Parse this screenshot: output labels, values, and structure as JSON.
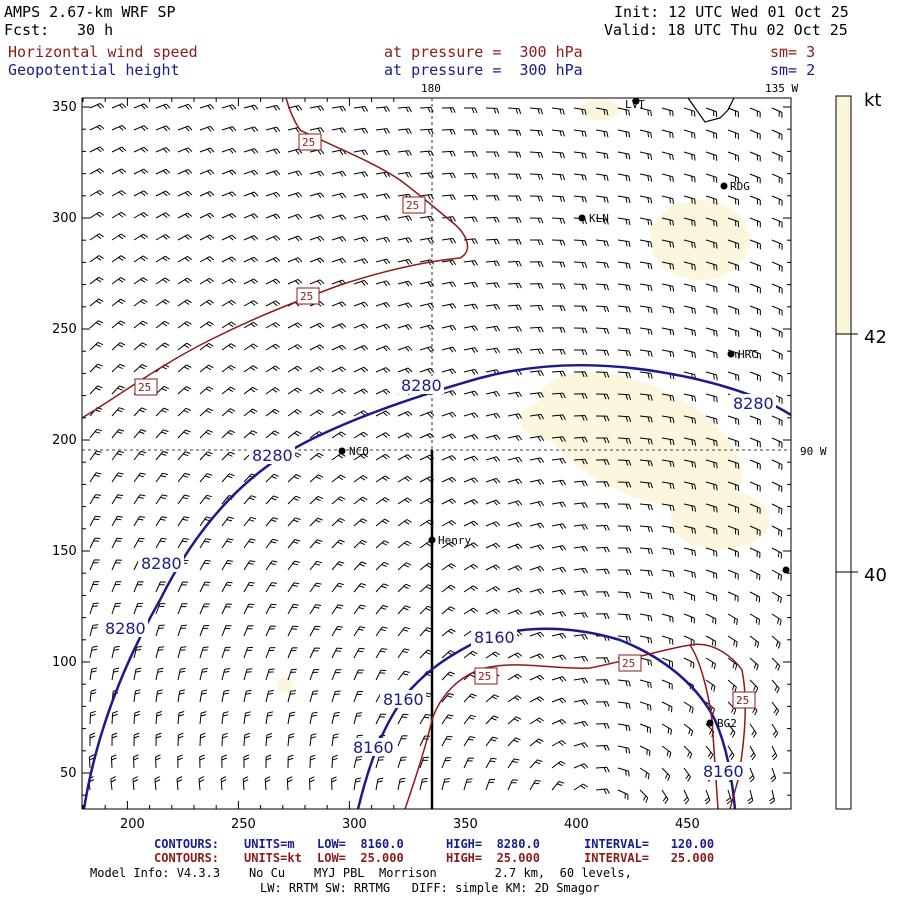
{
  "header": {
    "model": "AMPS 2.67-km WRF SP",
    "fcst_label": "Fcst:",
    "fcst_value": "30 h",
    "init": "Init: 12 UTC Wed 01 Oct 25",
    "valid": "Valid: 18 UTC Thu 02 Oct 25",
    "field1": "Horizontal wind speed",
    "field1_level": "at pressure =  300 hPa",
    "field1_sm": "sm= 3",
    "field2": "Geopotential height",
    "field2_level": "at pressure =  300 hPa",
    "field2_sm": "sm= 2"
  },
  "map": {
    "x_ticks": [
      "200",
      "250",
      "300",
      "350",
      "400",
      "450"
    ],
    "y_ticks": [
      "350",
      "300",
      "250",
      "200",
      "150",
      "100",
      "50"
    ],
    "lon_labels": {
      "top_180": "180",
      "top_135w": "135 W",
      "right_90w": "90 W"
    },
    "stations": [
      "LVT",
      "RDG",
      "KLN",
      "HRC",
      "NCO",
      "Henry",
      "BG2"
    ],
    "height_contour_label": "8280",
    "height_contour_label_low": "8160",
    "wind_contour_label": "25"
  },
  "colorbar": {
    "unit": "kt",
    "labels": [
      "42",
      "40"
    ],
    "colors": {
      "light": "#fbf6dc",
      "white": "#ffffff"
    }
  },
  "footer": {
    "line1_contours": "CONTOURS:",
    "line1_units": "UNITS=m",
    "line1_low": "LOW=  8160.0",
    "line1_high": "HIGH=  8280.0",
    "line1_interval": "INTERVAL=   120.00",
    "line2_contours": "CONTOURS:",
    "line2_units": "UNITS=kt",
    "line2_low": "LOW=  25.000",
    "line2_high": "HIGH=  25.000",
    "line2_interval": "INTERVAL=   25.000",
    "model_info": "Model Info: V4.3.3    No Cu    MYJ PBL  Morrison        2.7 km,  60 levels,",
    "model_info2": "LW: RRTM SW: RRTMG   DIFF: simple KM: 2D Smagor"
  },
  "colors": {
    "height": "#1a1a8b",
    "wind": "#8b1a1a",
    "shade": "#fbf6dc"
  }
}
